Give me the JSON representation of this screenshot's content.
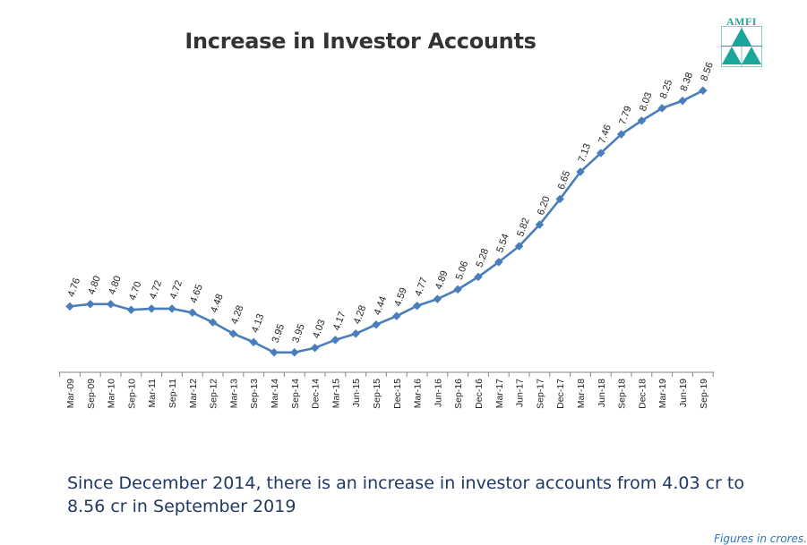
{
  "logo": {
    "text": "AMFI",
    "color": "#1aa79a"
  },
  "chart_data": {
    "type": "line",
    "title": "Increase in Investor Accounts",
    "xlabel": "",
    "ylabel": "",
    "ylim": [
      3.6,
      8.8
    ],
    "grid": false,
    "legend": "none",
    "categories": [
      "Mar-09",
      "Sep-09",
      "Mar-10",
      "Sep-10",
      "Mar-11",
      "Sep-11",
      "Mar-12",
      "Sep-12",
      "Mar-13",
      "Sep-13",
      "Mar-14",
      "Sep-14",
      "Dec-14",
      "Mar-15",
      "Jun-15",
      "Sep-15",
      "Dec-15",
      "Mar-16",
      "Jun-16",
      "Sep-16",
      "Dec-16",
      "Mar-17",
      "Jun-17",
      "Sep-17",
      "Dec-17",
      "Mar-18",
      "Jun-18",
      "Sep-18",
      "Dec-18",
      "Mar-19",
      "Jun-19",
      "Sep-19"
    ],
    "series": [
      {
        "values": [
          4.76,
          4.8,
          4.8,
          4.7,
          4.72,
          4.72,
          4.65,
          4.48,
          4.28,
          4.13,
          3.95,
          3.95,
          4.03,
          4.17,
          4.28,
          4.44,
          4.59,
          4.77,
          4.89,
          5.06,
          5.28,
          5.54,
          5.82,
          6.2,
          6.65,
          7.13,
          7.46,
          7.79,
          8.03,
          8.25,
          8.38,
          8.56
        ],
        "labels": [
          "4.76",
          "4.80",
          "4.80",
          "4.70",
          "4.72",
          "4.72",
          "4.65",
          "4.48",
          "4.28",
          "4.13",
          "3.95",
          "3.95",
          "4.03",
          "4.17",
          "4.28",
          "4.44",
          "4.59",
          "4.77",
          "4.89",
          "5.06",
          "5.28",
          "5.54",
          "5.82",
          "6.20",
          "6.65",
          "7.13",
          "7.46",
          "7.79",
          "8.03",
          "8.25",
          "8.38",
          "8.56"
        ],
        "color": "#4a7ebb"
      }
    ]
  },
  "caption": "Since December 2014, there is an increase in investor accounts from 4.03 cr to  8.56 cr in September 2019",
  "footnote": "Figures in crores."
}
